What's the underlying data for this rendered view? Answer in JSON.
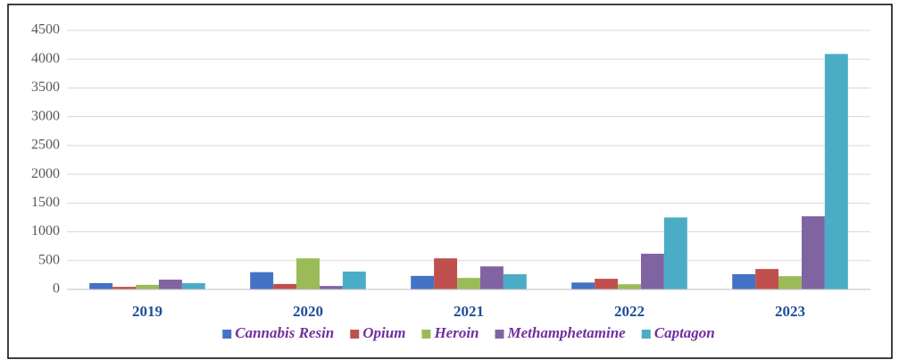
{
  "chart_data": {
    "type": "bar",
    "categories": [
      "2019",
      "2020",
      "2021",
      "2022",
      "2023"
    ],
    "series": [
      {
        "name": "Cannabis Resin",
        "color": "#4472c4",
        "values": [
          110,
          300,
          235,
          120,
          265
        ]
      },
      {
        "name": "Opium",
        "color": "#c0504d",
        "values": [
          45,
          95,
          540,
          185,
          355
        ]
      },
      {
        "name": "Heroin",
        "color": "#9bbb59",
        "values": [
          80,
          540,
          200,
          90,
          230
        ]
      },
      {
        "name": "Methamphetamine",
        "color": "#8064a2",
        "values": [
          170,
          60,
          400,
          620,
          1270
        ]
      },
      {
        "name": "Captagon",
        "color": "#4bacc6",
        "values": [
          110,
          310,
          265,
          1250,
          4090
        ]
      }
    ],
    "ylim": [
      0,
      4500
    ],
    "yticks": [
      0,
      500,
      1000,
      1500,
      2000,
      2500,
      3000,
      3500,
      4000,
      4500
    ],
    "grid": true,
    "legend": "bottom"
  }
}
